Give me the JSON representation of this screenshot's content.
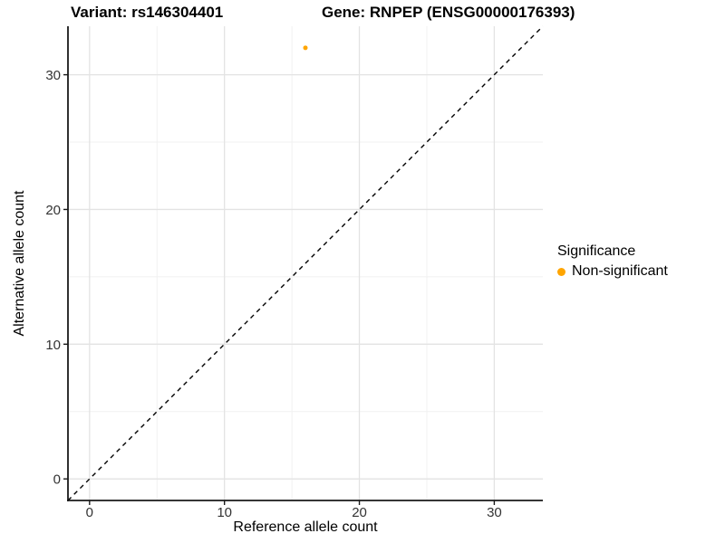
{
  "chart_data": {
    "type": "scatter",
    "title_left": "Variant: rs146304401",
    "title_right": "Gene: RNPEP (ENSG00000176393)",
    "xlabel": "Reference allele count",
    "ylabel": "Alternative allele count",
    "xlim": [
      -1.6,
      33.6
    ],
    "ylim": [
      -1.6,
      33.6
    ],
    "xticks": [
      0,
      10,
      20,
      30
    ],
    "yticks": [
      0,
      10,
      20,
      30
    ],
    "xminor": [
      5,
      15,
      25
    ],
    "yminor": [
      5,
      15,
      25
    ],
    "grid": "major+minor",
    "points": [
      {
        "x": 16,
        "y": 32,
        "series": "Non-significant"
      }
    ],
    "abline": {
      "slope": 1,
      "intercept": 0,
      "style": "dashed",
      "color": "#000000"
    },
    "legend": {
      "title": "Significance",
      "position": "right",
      "entries": [
        {
          "label": "Non-significant",
          "color": "#FFA500"
        }
      ]
    },
    "colors": {
      "grid_major": "#E3E3E3",
      "grid_minor": "#F1F1F1",
      "axis_line": "#1A1A1A",
      "tick_label": "#333333"
    }
  }
}
